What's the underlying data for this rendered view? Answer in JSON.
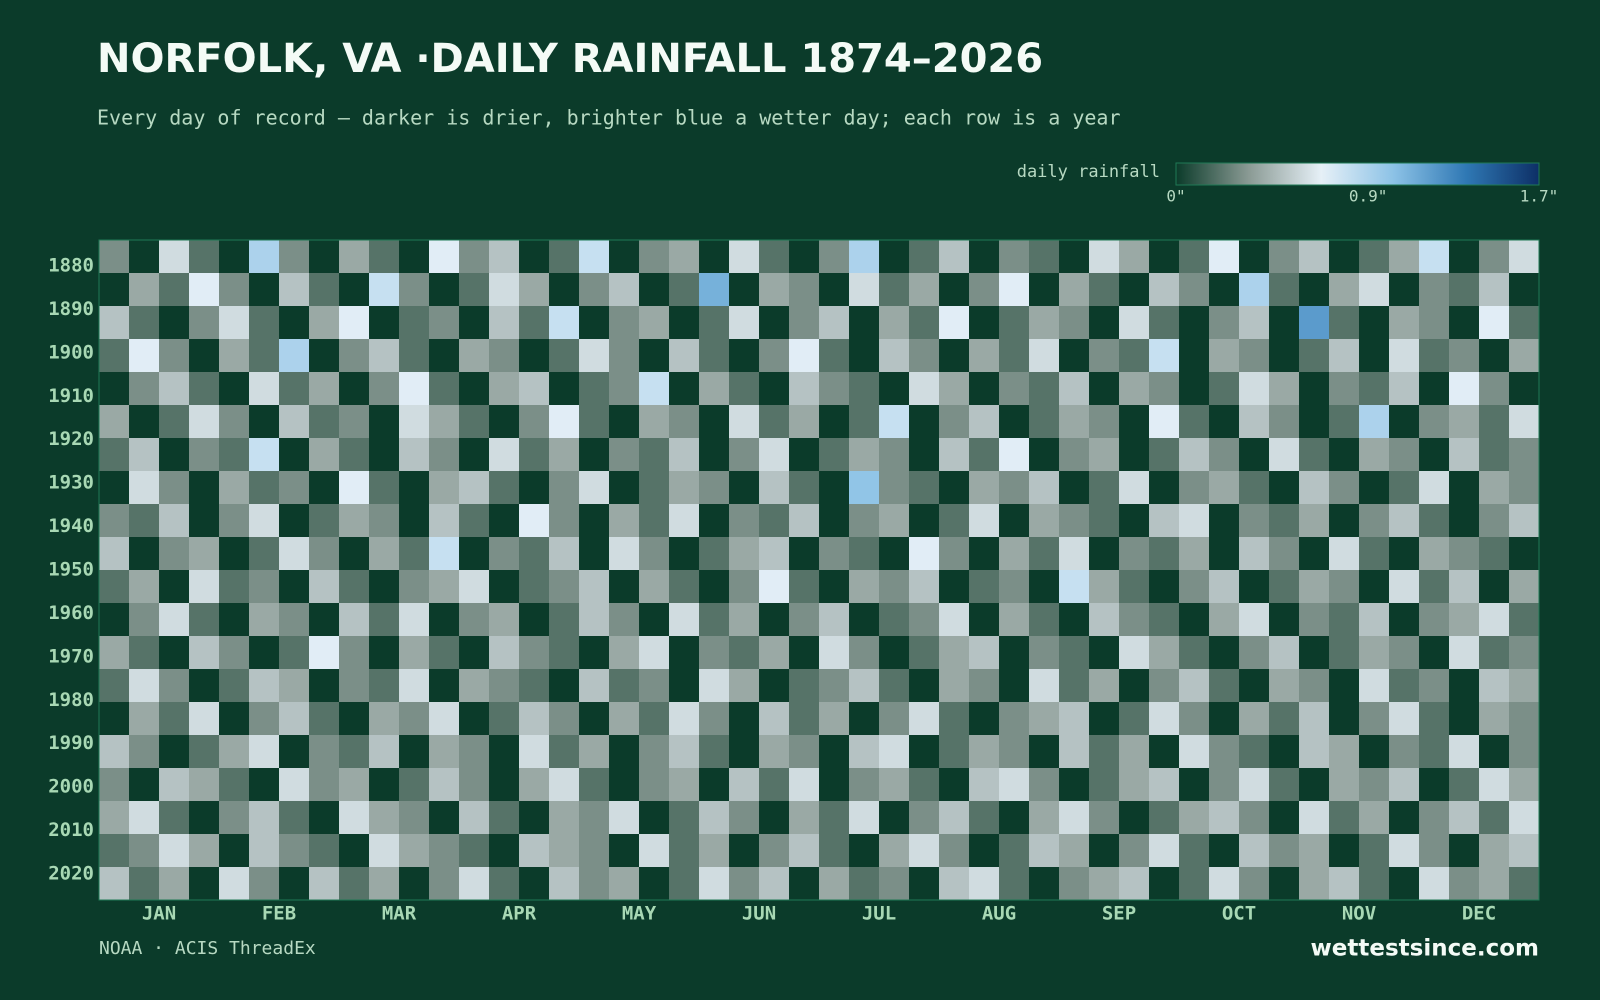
{
  "chart_data": {
    "type": "heatmap",
    "title": "NORFOLK, VA ·DAILY RAINFALL 1874–2026",
    "subtitle": "Every day of record — darker is drier, brighter blue a wetter day; each row is a year",
    "colorbar_label": "daily rainfall",
    "clim": [
      0,
      1.7
    ],
    "cticks": [
      {
        "value": 0,
        "label": "0\""
      },
      {
        "value": 0.9,
        "label": "0.9\""
      },
      {
        "value": 1.7,
        "label": "1.7\""
      }
    ],
    "colormap": [
      "#0b3b2a",
      "#8a9a94",
      "#e6f0f7",
      "#8cc2e6",
      "#2f78b4",
      "#0d2f66"
    ],
    "ylim": [
      1874,
      2026
    ],
    "yticks": [
      1880,
      1890,
      1900,
      1910,
      1920,
      1930,
      1940,
      1950,
      1960,
      1970,
      1980,
      1990,
      2000,
      2010,
      2020
    ],
    "categories": [
      "JAN",
      "FEB",
      "MAR",
      "APR",
      "MAY",
      "JUN",
      "JUL",
      "AUG",
      "SEP",
      "OCT",
      "NOV",
      "DEC"
    ],
    "values": [
      [
        0.3,
        0,
        0.6,
        0.2,
        0,
        0.9,
        0.3,
        0,
        0.4,
        0.2,
        0,
        0.7,
        0.3,
        0.5,
        0,
        0.2,
        0.8,
        0,
        0.3,
        0.4,
        0,
        0.6,
        0.2,
        0,
        0.3,
        0.9,
        0,
        0.2,
        0.5,
        0,
        0.3,
        0.2,
        0,
        0.6,
        0.4,
        0,
        0.2,
        0.7,
        0,
        0.3,
        0.5,
        0,
        0.2,
        0.4,
        0.8,
        0,
        0.3,
        0.6
      ],
      [
        0,
        0.4,
        0.2,
        0.7,
        0.3,
        0,
        0.5,
        0.2,
        0,
        0.8,
        0.3,
        0,
        0.2,
        0.6,
        0.4,
        0,
        0.3,
        0.5,
        0,
        0.2,
        1.1,
        0,
        0.4,
        0.3,
        0,
        0.6,
        0.2,
        0.4,
        0,
        0.3,
        0.7,
        0,
        0.4,
        0.2,
        0,
        0.5,
        0.3,
        0,
        0.9,
        0.2,
        0,
        0.4,
        0.6,
        0,
        0.3,
        0.2,
        0.5,
        0
      ],
      [
        0.5,
        0.2,
        0,
        0.3,
        0.6,
        0.2,
        0,
        0.4,
        0.7,
        0,
        0.2,
        0.3,
        0,
        0.5,
        0.2,
        0.8,
        0,
        0.3,
        0.4,
        0,
        0.2,
        0.6,
        0,
        0.3,
        0.5,
        0,
        0.4,
        0.2,
        0.7,
        0,
        0.2,
        0.4,
        0.3,
        0,
        0.6,
        0.2,
        0,
        0.3,
        0.5,
        0,
        1.2,
        0.2,
        0,
        0.4,
        0.3,
        0,
        0.7,
        0.2
      ],
      [
        0.2,
        0.7,
        0.3,
        0,
        0.4,
        0.2,
        0.9,
        0,
        0.3,
        0.5,
        0.2,
        0,
        0.4,
        0.3,
        0,
        0.2,
        0.6,
        0.3,
        0,
        0.5,
        0.2,
        0,
        0.3,
        0.7,
        0.2,
        0,
        0.5,
        0.3,
        0,
        0.4,
        0.2,
        0.6,
        0,
        0.3,
        0.2,
        0.8,
        0,
        0.4,
        0.3,
        0,
        0.2,
        0.5,
        0,
        0.6,
        0.2,
        0.3,
        0,
        0.4
      ],
      [
        0,
        0.3,
        0.5,
        0.2,
        0,
        0.6,
        0.2,
        0.4,
        0,
        0.3,
        0.7,
        0.2,
        0,
        0.4,
        0.5,
        0,
        0.2,
        0.3,
        0.8,
        0,
        0.4,
        0.2,
        0,
        0.5,
        0.3,
        0.2,
        0,
        0.6,
        0.4,
        0,
        0.3,
        0.2,
        0.5,
        0,
        0.4,
        0.3,
        0,
        0.2,
        0.6,
        0.4,
        0,
        0.3,
        0.2,
        0.5,
        0,
        0.7,
        0.3,
        0
      ],
      [
        0.4,
        0,
        0.2,
        0.6,
        0.3,
        0,
        0.5,
        0.2,
        0.3,
        0,
        0.6,
        0.4,
        0.2,
        0,
        0.3,
        0.7,
        0.2,
        0,
        0.4,
        0.3,
        0,
        0.6,
        0.2,
        0.4,
        0,
        0.2,
        0.8,
        0,
        0.3,
        0.5,
        0,
        0.2,
        0.4,
        0.3,
        0,
        0.7,
        0.2,
        0,
        0.5,
        0.3,
        0,
        0.2,
        0.9,
        0,
        0.3,
        0.4,
        0.2,
        0.6
      ],
      [
        0.2,
        0.5,
        0,
        0.3,
        0.2,
        0.8,
        0,
        0.4,
        0.2,
        0,
        0.5,
        0.3,
        0,
        0.6,
        0.2,
        0.4,
        0,
        0.3,
        0.2,
        0.5,
        0,
        0.3,
        0.6,
        0,
        0.2,
        0.4,
        0.3,
        0,
        0.5,
        0.2,
        0.7,
        0,
        0.3,
        0.4,
        0,
        0.2,
        0.5,
        0.3,
        0,
        0.6,
        0.2,
        0,
        0.4,
        0.3,
        0,
        0.5,
        0.2,
        0.3
      ],
      [
        0,
        0.6,
        0.3,
        0,
        0.4,
        0.2,
        0.3,
        0,
        0.7,
        0.2,
        0,
        0.4,
        0.5,
        0.2,
        0,
        0.3,
        0.6,
        0,
        0.2,
        0.4,
        0.3,
        0,
        0.5,
        0.2,
        0,
        1.0,
        0.3,
        0.2,
        0,
        0.4,
        0.3,
        0.5,
        0,
        0.2,
        0.6,
        0,
        0.3,
        0.4,
        0.2,
        0,
        0.5,
        0.3,
        0,
        0.2,
        0.6,
        0,
        0.4,
        0.3
      ],
      [
        0.3,
        0.2,
        0.5,
        0,
        0.3,
        0.6,
        0,
        0.2,
        0.4,
        0.3,
        0,
        0.5,
        0.2,
        0,
        0.7,
        0.3,
        0,
        0.4,
        0.2,
        0.6,
        0,
        0.3,
        0.2,
        0.5,
        0,
        0.3,
        0.4,
        0,
        0.2,
        0.6,
        0,
        0.4,
        0.3,
        0.2,
        0,
        0.5,
        0.6,
        0,
        0.3,
        0.2,
        0.4,
        0,
        0.3,
        0.5,
        0.2,
        0,
        0.3,
        0.5
      ],
      [
        0.5,
        0,
        0.3,
        0.4,
        0,
        0.2,
        0.6,
        0.3,
        0,
        0.4,
        0.2,
        0.8,
        0,
        0.3,
        0.2,
        0.5,
        0,
        0.6,
        0.3,
        0,
        0.2,
        0.4,
        0.5,
        0,
        0.3,
        0.2,
        0,
        0.7,
        0.3,
        0,
        0.4,
        0.2,
        0.6,
        0,
        0.3,
        0.2,
        0.4,
        0,
        0.5,
        0.3,
        0,
        0.6,
        0.2,
        0,
        0.4,
        0.3,
        0.2,
        0
      ],
      [
        0.2,
        0.4,
        0,
        0.6,
        0.2,
        0.3,
        0,
        0.5,
        0.2,
        0,
        0.3,
        0.4,
        0.6,
        0,
        0.2,
        0.3,
        0.5,
        0,
        0.4,
        0.2,
        0,
        0.3,
        0.7,
        0.2,
        0,
        0.4,
        0.3,
        0.5,
        0,
        0.2,
        0.3,
        0,
        0.8,
        0.4,
        0.2,
        0,
        0.3,
        0.5,
        0,
        0.2,
        0.4,
        0.3,
        0,
        0.6,
        0.2,
        0.5,
        0,
        0.4
      ],
      [
        0,
        0.3,
        0.6,
        0.2,
        0,
        0.4,
        0.3,
        0,
        0.5,
        0.2,
        0.6,
        0,
        0.3,
        0.4,
        0,
        0.2,
        0.5,
        0.3,
        0,
        0.6,
        0.2,
        0.4,
        0,
        0.3,
        0.5,
        0,
        0.2,
        0.3,
        0.6,
        0,
        0.4,
        0.2,
        0,
        0.5,
        0.3,
        0.2,
        0,
        0.4,
        0.6,
        0,
        0.3,
        0.2,
        0.5,
        0,
        0.3,
        0.4,
        0.6,
        0.2
      ],
      [
        0.4,
        0.2,
        0,
        0.5,
        0.3,
        0,
        0.2,
        0.7,
        0.3,
        0,
        0.4,
        0.2,
        0,
        0.5,
        0.3,
        0.2,
        0,
        0.4,
        0.6,
        0,
        0.3,
        0.2,
        0.4,
        0,
        0.6,
        0.3,
        0,
        0.2,
        0.4,
        0.5,
        0,
        0.3,
        0.2,
        0,
        0.6,
        0.4,
        0.2,
        0,
        0.3,
        0.5,
        0,
        0.2,
        0.4,
        0.3,
        0,
        0.6,
        0.2,
        0.3
      ],
      [
        0.2,
        0.6,
        0.3,
        0,
        0.2,
        0.5,
        0.4,
        0,
        0.3,
        0.2,
        0.6,
        0,
        0.4,
        0.3,
        0.2,
        0,
        0.5,
        0.2,
        0.3,
        0,
        0.6,
        0.4,
        0,
        0.2,
        0.3,
        0.5,
        0.2,
        0,
        0.4,
        0.3,
        0,
        0.6,
        0.2,
        0.4,
        0,
        0.3,
        0.5,
        0.2,
        0,
        0.4,
        0.3,
        0,
        0.6,
        0.2,
        0.3,
        0,
        0.5,
        0.4
      ],
      [
        0,
        0.4,
        0.2,
        0.6,
        0,
        0.3,
        0.5,
        0.2,
        0,
        0.4,
        0.3,
        0.6,
        0,
        0.2,
        0.5,
        0.3,
        0,
        0.4,
        0.2,
        0.6,
        0.3,
        0,
        0.5,
        0.2,
        0.4,
        0,
        0.3,
        0.6,
        0.2,
        0,
        0.3,
        0.4,
        0.5,
        0,
        0.2,
        0.6,
        0.3,
        0,
        0.4,
        0.2,
        0.5,
        0,
        0.3,
        0.6,
        0.2,
        0,
        0.4,
        0.3
      ],
      [
        0.5,
        0.3,
        0,
        0.2,
        0.4,
        0.6,
        0,
        0.3,
        0.2,
        0.5,
        0,
        0.4,
        0.3,
        0,
        0.6,
        0.2,
        0.4,
        0,
        0.3,
        0.5,
        0.2,
        0,
        0.4,
        0.3,
        0,
        0.5,
        0.6,
        0,
        0.2,
        0.4,
        0.3,
        0,
        0.5,
        0.2,
        0.4,
        0,
        0.6,
        0.3,
        0.2,
        0,
        0.5,
        0.4,
        0,
        0.3,
        0.2,
        0.6,
        0,
        0.3
      ],
      [
        0.3,
        0,
        0.5,
        0.4,
        0.2,
        0,
        0.6,
        0.3,
        0.4,
        0,
        0.2,
        0.5,
        0.3,
        0,
        0.4,
        0.6,
        0.2,
        0,
        0.3,
        0.4,
        0,
        0.5,
        0.2,
        0.6,
        0,
        0.3,
        0.4,
        0.2,
        0,
        0.5,
        0.6,
        0.3,
        0,
        0.2,
        0.4,
        0.5,
        0,
        0.3,
        0.6,
        0.2,
        0,
        0.4,
        0.3,
        0.5,
        0,
        0.2,
        0.6,
        0.4
      ],
      [
        0.4,
        0.6,
        0.2,
        0,
        0.3,
        0.5,
        0.2,
        0,
        0.6,
        0.4,
        0.3,
        0,
        0.5,
        0.2,
        0,
        0.4,
        0.3,
        0.6,
        0,
        0.2,
        0.5,
        0.3,
        0,
        0.4,
        0.2,
        0.6,
        0,
        0.3,
        0.5,
        0.2,
        0,
        0.4,
        0.6,
        0.3,
        0,
        0.2,
        0.4,
        0.5,
        0.3,
        0,
        0.6,
        0.2,
        0.4,
        0,
        0.3,
        0.5,
        0.2,
        0.6
      ],
      [
        0.2,
        0.3,
        0.6,
        0.4,
        0,
        0.5,
        0.3,
        0.2,
        0,
        0.6,
        0.4,
        0.3,
        0.2,
        0,
        0.5,
        0.4,
        0.3,
        0,
        0.6,
        0.2,
        0.4,
        0,
        0.3,
        0.5,
        0.2,
        0,
        0.4,
        0.6,
        0.3,
        0,
        0.2,
        0.5,
        0.4,
        0,
        0.3,
        0.6,
        0.2,
        0,
        0.5,
        0.3,
        0.4,
        0,
        0.2,
        0.6,
        0.3,
        0,
        0.4,
        0.5
      ],
      [
        0.5,
        0.2,
        0.4,
        0,
        0.6,
        0.3,
        0,
        0.5,
        0.2,
        0.4,
        0,
        0.3,
        0.6,
        0.2,
        0,
        0.5,
        0.3,
        0.4,
        0,
        0.2,
        0.6,
        0.3,
        0.5,
        0,
        0.4,
        0.2,
        0.3,
        0,
        0.5,
        0.6,
        0.2,
        0,
        0.3,
        0.4,
        0.5,
        0,
        0.2,
        0.6,
        0.3,
        0,
        0.4,
        0.5,
        0.2,
        0,
        0.6,
        0.3,
        0.4,
        0.2
      ]
    ],
    "source": "NOAA · ACIS ThreadEx",
    "brand": "wettestsince.com"
  }
}
